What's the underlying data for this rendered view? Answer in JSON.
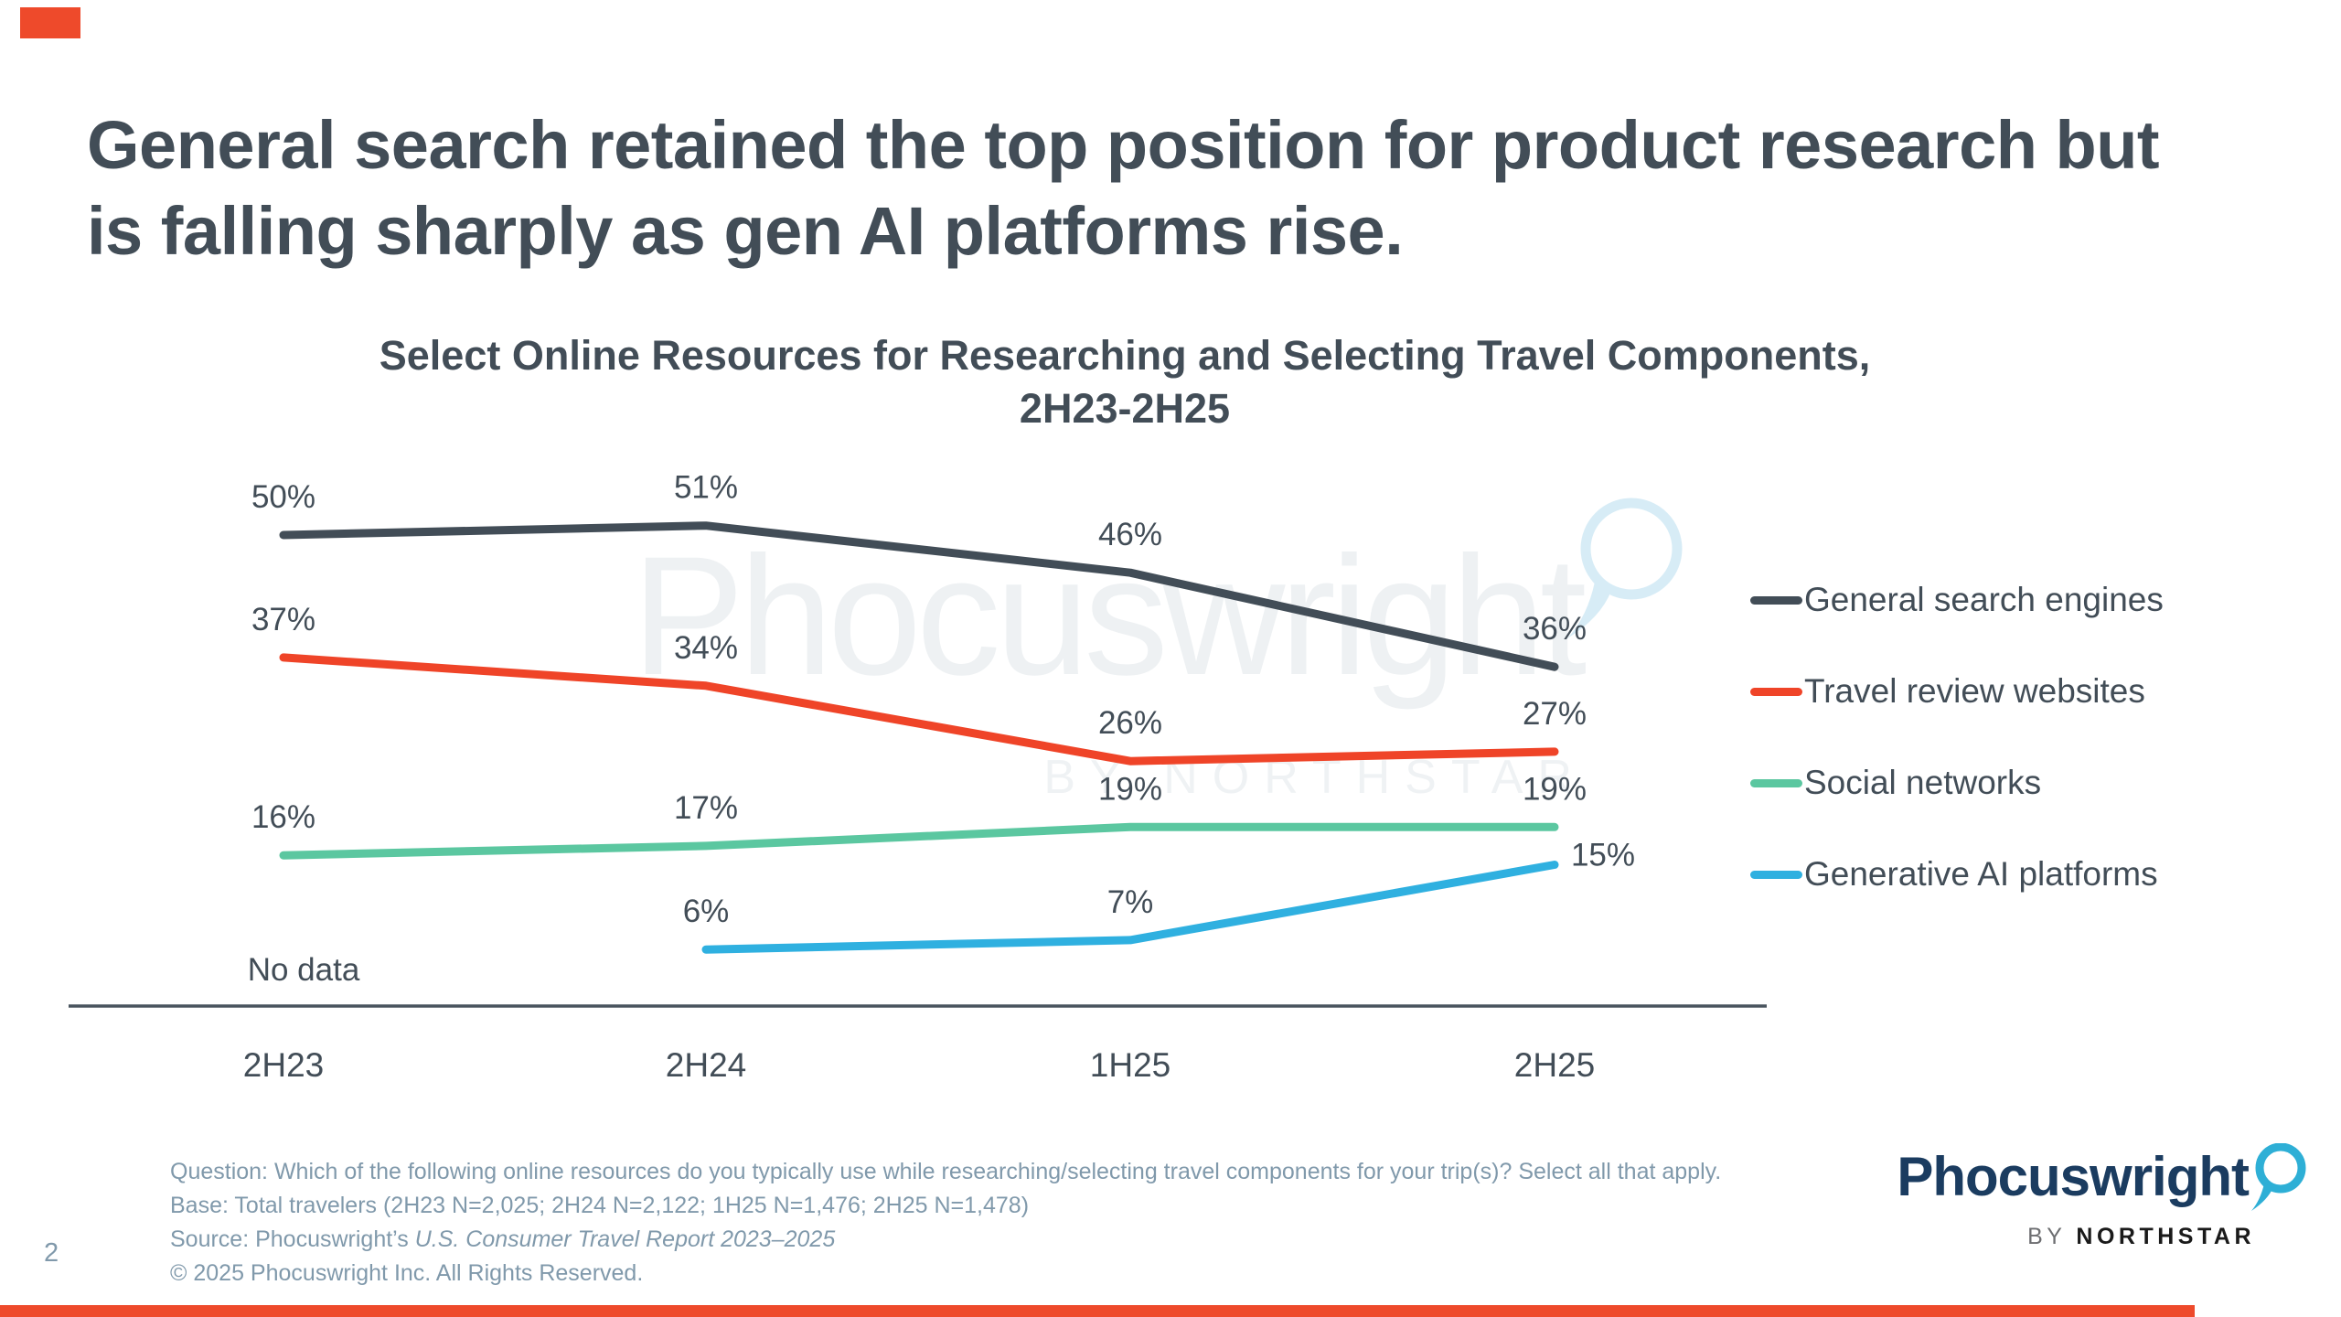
{
  "slide": {
    "title": "General search retained the top position for product research but is falling sharply as gen AI platforms rise.",
    "page_number": "2"
  },
  "chart_data": {
    "type": "line",
    "title_line1": "Select Online Resources for Researching and Selecting Travel Components,",
    "title_line2": "2H23-2H25",
    "categories": [
      "2H23",
      "2H24",
      "1H25",
      "2H25"
    ],
    "series": [
      {
        "name": "General search engines",
        "color": "#424D57",
        "values": [
          50,
          51,
          46,
          36
        ]
      },
      {
        "name": "Travel review websites",
        "color": "#EF4428",
        "values": [
          37,
          34,
          26,
          27
        ]
      },
      {
        "name": "Social networks",
        "color": "#5BC7A0",
        "values": [
          16,
          17,
          19,
          19
        ]
      },
      {
        "name": "Generative AI platforms",
        "color": "#2FB0E0",
        "values": [
          null,
          6,
          7,
          15
        ]
      }
    ],
    "no_data_label": "No data",
    "unit": "%",
    "ylim": [
      0,
      55
    ],
    "grid": false,
    "legend_position": "right"
  },
  "watermark": {
    "text": "Phocuswright",
    "subtext": "BY NORTHSTAR"
  },
  "footer": {
    "question": "Question: Which of the following online resources do you typically use while researching/selecting travel components for your trip(s)? Select all that apply.",
    "base": "Base: Total travelers (2H23 N=2,025; 2H24 N=2,122; 1H25 N=1,476; 2H25 N=1,478)",
    "source_prefix": "Source: Phocuswright’s ",
    "source_italic": "U.S. Consumer Travel Report 2023–2025",
    "copyright": "© 2025 Phocuswright Inc. All Rights Reserved."
  },
  "logo": {
    "wordmark": "Phocuswright",
    "byline_prefix": "BY ",
    "byline": "NORTHSTAR"
  },
  "accent": {
    "red": "#EE4A2B",
    "slate": "#424D57",
    "footer_gray": "#8099AB",
    "watermark_gray": "#EEF1F3",
    "watermark_blue": "#D7ECF6",
    "logo_navy": "#1B3C60",
    "logo_cyan": "#2EAFD6"
  }
}
